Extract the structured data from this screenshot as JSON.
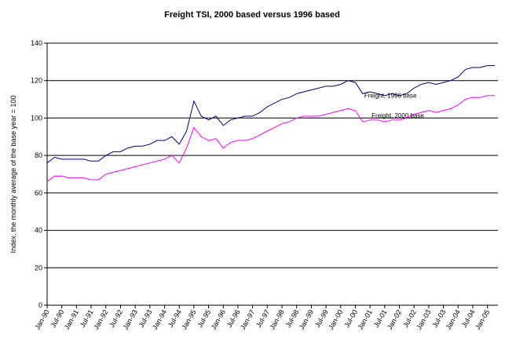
{
  "chart_data": {
    "type": "line",
    "title": "Freight TSI, 2000 based versus 1996 based",
    "y_label": "Index, the monthly average of the base year = 100",
    "categories": [
      "Jan-90",
      null,
      "Jul-90",
      null,
      "Jan-91",
      null,
      "Jul-91",
      null,
      "Jan-92",
      null,
      "Jul-92",
      null,
      "Jan-93",
      null,
      "Jul-93",
      null,
      "Jan-94",
      null,
      "Jul-94",
      null,
      "Jan-95",
      null,
      "Jul-95",
      null,
      "Jan-96",
      null,
      "Jul-96",
      null,
      "Jan-97",
      null,
      "Jul-97",
      null,
      "Jan-98",
      null,
      "Jul-98",
      null,
      "Jan-99",
      null,
      "Jul-99",
      null,
      "Jan-00",
      null,
      "Jul-00",
      null,
      "Jan-01",
      null,
      "Jul-01",
      null,
      "Jan-02",
      null,
      "Jul-02",
      null,
      "Jan-03",
      null,
      "Jul-03",
      null,
      "Jan-04",
      null,
      "Jul-04",
      null,
      "Jan-05",
      null
    ],
    "series": [
      {
        "name": "Freight, 1996 base",
        "color": "#000080",
        "values": [
          76,
          79,
          78,
          78,
          78,
          78,
          77,
          77,
          80,
          82,
          82,
          84,
          85,
          85,
          86,
          88,
          88,
          90,
          86,
          93,
          109,
          101,
          99,
          101,
          96,
          99,
          100,
          101,
          101,
          103,
          106,
          108,
          110,
          111,
          113,
          114,
          115,
          116,
          117,
          117,
          118,
          120,
          119,
          113,
          114,
          113,
          112,
          113,
          112,
          113,
          116,
          118,
          119,
          118,
          119,
          120,
          122,
          126,
          127,
          127,
          128,
          128
        ]
      },
      {
        "name": "Freight, 2000 base",
        "color": "#ff00ff",
        "values": [
          66,
          69,
          69,
          68,
          68,
          68,
          67,
          67,
          70,
          71,
          72,
          73,
          74,
          75,
          76,
          77,
          78,
          80,
          76,
          84,
          95,
          90,
          88,
          89,
          84,
          87,
          88,
          88,
          89,
          91,
          93,
          95,
          97,
          98,
          100,
          101,
          101,
          101,
          102,
          103,
          104,
          105,
          104,
          98,
          99,
          99,
          98,
          99,
          99,
          100,
          102,
          103,
          104,
          103,
          104,
          105,
          107,
          110,
          111,
          111,
          112,
          112
        ]
      }
    ],
    "ylim": [
      0,
      140
    ],
    "yticks": [
      0,
      20,
      40,
      60,
      80,
      100,
      120,
      140
    ],
    "grid": true
  }
}
